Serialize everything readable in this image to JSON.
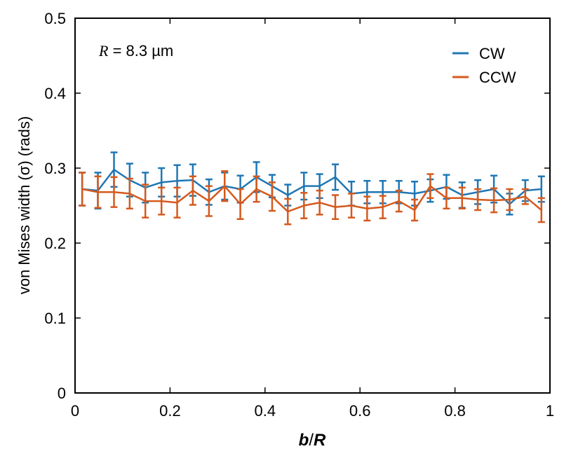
{
  "chart_data": {
    "type": "line",
    "annotation_prefix": "R",
    "annotation_suffix": " = 8.3 µm",
    "xlabel_part1": "b",
    "xlabel_part2": "/",
    "xlabel_part3": "R",
    "ylabel": "von Mises width (σ) (rads)",
    "xlim": [
      0,
      1
    ],
    "ylim": [
      0,
      0.5
    ],
    "x_ticks": [
      0,
      0.2,
      0.4,
      0.6,
      0.8,
      1
    ],
    "x_tick_labels": [
      "0",
      "0.2",
      "0.4",
      "0.6",
      "0.8",
      "1"
    ],
    "y_ticks": [
      0,
      0.1,
      0.2,
      0.3,
      0.4,
      0.5
    ],
    "y_tick_labels": [
      "0",
      "0.1",
      "0.2",
      "0.3",
      "0.4",
      "0.5"
    ],
    "legend_position": "top-right",
    "x": [
      0.015,
      0.048,
      0.082,
      0.115,
      0.148,
      0.182,
      0.215,
      0.248,
      0.282,
      0.315,
      0.348,
      0.382,
      0.415,
      0.448,
      0.482,
      0.515,
      0.548,
      0.582,
      0.615,
      0.648,
      0.682,
      0.715,
      0.748,
      0.782,
      0.815,
      0.848,
      0.882,
      0.915,
      0.948,
      0.982
    ],
    "series": [
      {
        "name": "CW",
        "color": "#1f77b4",
        "values": [
          0.272,
          0.27,
          0.298,
          0.284,
          0.274,
          0.281,
          0.283,
          0.284,
          0.268,
          0.276,
          0.272,
          0.288,
          0.276,
          0.264,
          0.276,
          0.276,
          0.288,
          0.266,
          0.268,
          0.268,
          0.268,
          0.266,
          0.27,
          0.275,
          0.264,
          0.268,
          0.272,
          0.252,
          0.27,
          0.272
        ],
        "errors": [
          0.022,
          0.024,
          0.023,
          0.022,
          0.02,
          0.019,
          0.021,
          0.021,
          0.017,
          0.018,
          0.018,
          0.02,
          0.015,
          0.014,
          0.018,
          0.016,
          0.017,
          0.016,
          0.015,
          0.015,
          0.015,
          0.016,
          0.015,
          0.016,
          0.017,
          0.016,
          0.018,
          0.014,
          0.014,
          0.017
        ]
      },
      {
        "name": "CCW",
        "color": "#d45a1e",
        "values": [
          0.272,
          0.268,
          0.268,
          0.266,
          0.256,
          0.256,
          0.254,
          0.27,
          0.256,
          0.276,
          0.252,
          0.272,
          0.262,
          0.242,
          0.25,
          0.254,
          0.248,
          0.25,
          0.246,
          0.248,
          0.256,
          0.244,
          0.276,
          0.26,
          0.26,
          0.258,
          0.257,
          0.258,
          0.262,
          0.244
        ],
        "errors": [
          0.022,
          0.021,
          0.02,
          0.02,
          0.022,
          0.018,
          0.02,
          0.019,
          0.02,
          0.02,
          0.02,
          0.017,
          0.019,
          0.017,
          0.017,
          0.016,
          0.016,
          0.016,
          0.016,
          0.015,
          0.014,
          0.014,
          0.016,
          0.014,
          0.014,
          0.014,
          0.016,
          0.014,
          0.01,
          0.016
        ]
      }
    ]
  }
}
